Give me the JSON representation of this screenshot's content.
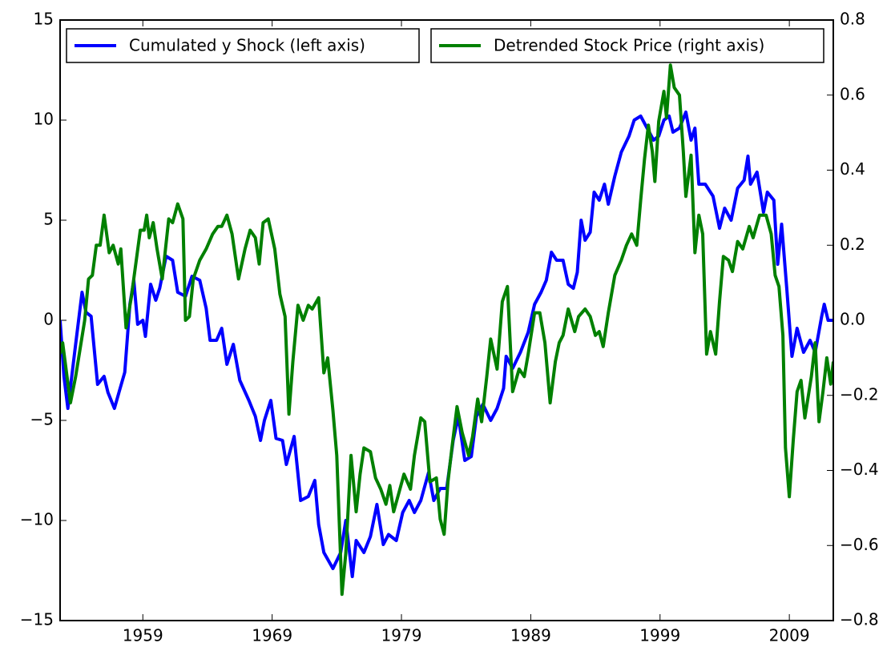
{
  "chart_data": {
    "type": "line",
    "xlim": [
      1952.6,
      2012.4
    ],
    "xticks": [
      1959,
      1969,
      1979,
      1989,
      1999,
      2009
    ],
    "ylim": [
      -15,
      15
    ],
    "yticks": [
      {
        "value": -15,
        "label": "−15"
      },
      {
        "value": -10,
        "label": "−10"
      },
      {
        "value": -5,
        "label": "−5"
      },
      0,
      5,
      10,
      15
    ],
    "y2lim": [
      -0.8,
      0.8
    ],
    "y2ticks": [
      {
        "value": -0.8,
        "label": "−0.8"
      },
      {
        "value": -0.6,
        "label": "−0.6"
      },
      {
        "value": -0.4,
        "label": "−0.4"
      },
      {
        "value": -0.2,
        "label": "−0.2"
      },
      {
        "value": 0,
        "label": "0.0"
      },
      0.2,
      0.4,
      0.6,
      0.8
    ],
    "legend": "upper center",
    "series": [
      {
        "name": "Cumulated y Shock (left axis)",
        "color": "#0000ff",
        "axis": "y",
        "x": [
          1952.6,
          1952.9,
          1953.2,
          1953.8,
          1954.3,
          1954.6,
          1955.0,
          1955.5,
          1956.0,
          1956.3,
          1956.8,
          1957.2,
          1957.6,
          1958.0,
          1958.3,
          1958.6,
          1959.0,
          1959.2,
          1959.6,
          1960.0,
          1960.3,
          1960.8,
          1961.3,
          1961.7,
          1962.3,
          1962.8,
          1963.4,
          1963.9,
          1964.2,
          1964.7,
          1965.1,
          1965.5,
          1966.0,
          1966.5,
          1967.2,
          1967.7,
          1968.1,
          1968.4,
          1968.9,
          1969.3,
          1969.8,
          1970.1,
          1970.7,
          1971.2,
          1971.8,
          1972.3,
          1972.6,
          1973.0,
          1973.7,
          1974.3,
          1974.7,
          1975.2,
          1975.5,
          1976.1,
          1976.6,
          1977.1,
          1977.6,
          1978.0,
          1978.6,
          1979.1,
          1979.6,
          1980.0,
          1980.5,
          1981.1,
          1981.5,
          1982.0,
          1982.5,
          1983.0,
          1983.4,
          1983.9,
          1984.4,
          1984.8,
          1985.3,
          1985.9,
          1986.4,
          1986.9,
          1987.1,
          1987.6,
          1988.2,
          1988.8,
          1989.3,
          1989.8,
          1990.2,
          1990.6,
          1991.0,
          1991.5,
          1991.9,
          1992.3,
          1992.6,
          1992.9,
          1993.2,
          1993.6,
          1993.9,
          1994.3,
          1994.7,
          1995.0,
          1995.5,
          1996.0,
          1996.6,
          1997.0,
          1997.5,
          1998.0,
          1998.5,
          1998.9,
          1999.3,
          1999.7,
          2000.0,
          2000.5,
          2001.0,
          2001.4,
          2001.7,
          2002.0,
          2002.5,
          2003.1,
          2003.6,
          2004.0,
          2004.5,
          2005.0,
          2005.5,
          2005.8,
          2006.0,
          2006.5,
          2007.0,
          2007.3,
          2007.8,
          2008.1,
          2008.4,
          2008.8,
          2009.2,
          2009.6,
          2010.1,
          2010.6,
          2011.0,
          2011.5,
          2011.7,
          2012.0,
          2012.4
        ],
        "values": [
          0,
          -2.8,
          -4.4,
          -1.2,
          1.4,
          0.4,
          0.2,
          -3.2,
          -2.8,
          -3.6,
          -4.4,
          -3.5,
          -2.6,
          0.8,
          2.0,
          -0.2,
          0,
          -0.8,
          1.8,
          1.0,
          1.6,
          3.2,
          3.0,
          1.4,
          1.2,
          2.2,
          2.0,
          0.6,
          -1.0,
          -1.0,
          -0.4,
          -2.2,
          -1.2,
          -3.0,
          -4.0,
          -4.8,
          -6.0,
          -5.0,
          -4.0,
          -5.9,
          -6.0,
          -7.2,
          -5.8,
          -9.0,
          -8.8,
          -8.0,
          -10.2,
          -11.6,
          -12.4,
          -11.6,
          -10.0,
          -12.8,
          -11.0,
          -11.6,
          -10.8,
          -9.2,
          -11.2,
          -10.7,
          -11.0,
          -9.6,
          -9.0,
          -9.6,
          -9.0,
          -7.6,
          -9.0,
          -8.4,
          -8.4,
          -6.0,
          -4.8,
          -7.0,
          -6.8,
          -4.8,
          -4.2,
          -5.0,
          -4.4,
          -3.4,
          -1.8,
          -2.4,
          -1.6,
          -0.6,
          0.8,
          1.4,
          2.0,
          3.4,
          3.0,
          3.0,
          1.8,
          1.6,
          2.4,
          5.0,
          4.0,
          4.4,
          6.4,
          6.0,
          6.8,
          5.8,
          7.2,
          8.4,
          9.2,
          10.0,
          10.2,
          9.6,
          9.0,
          9.2,
          10.0,
          10.2,
          9.4,
          9.6,
          10.4,
          9.0,
          9.6,
          6.8,
          6.8,
          6.2,
          4.6,
          5.6,
          5.0,
          6.6,
          7.0,
          8.2,
          6.8,
          7.4,
          5.4,
          6.4,
          6.0,
          2.8,
          4.8,
          1.6,
          -1.8,
          -0.4,
          -1.6,
          -1.0,
          -1.6,
          0.2,
          0.8,
          0,
          0
        ]
      },
      {
        "name": "Detrended Stock Price (right axis)",
        "color": "#008000",
        "axis": "y2",
        "x": [
          1952.6,
          1952.8,
          1953.4,
          1953.8,
          1954.5,
          1954.8,
          1955.1,
          1955.4,
          1955.7,
          1956.0,
          1956.4,
          1956.7,
          1957.1,
          1957.3,
          1957.7,
          1958.1,
          1958.8,
          1959.1,
          1959.3,
          1959.5,
          1959.8,
          1960.1,
          1960.5,
          1961.0,
          1961.3,
          1961.7,
          1962.1,
          1962.3,
          1962.6,
          1962.9,
          1963.4,
          1963.9,
          1964.4,
          1964.8,
          1965.1,
          1965.5,
          1965.9,
          1966.4,
          1966.9,
          1967.3,
          1967.7,
          1968.0,
          1968.3,
          1968.7,
          1969.2,
          1969.6,
          1970.0,
          1970.3,
          1970.6,
          1971.0,
          1971.4,
          1971.8,
          1972.1,
          1972.6,
          1973.0,
          1973.3,
          1973.7,
          1974.0,
          1974.4,
          1974.7,
          1975.1,
          1975.5,
          1975.8,
          1976.1,
          1976.6,
          1977.0,
          1977.4,
          1977.8,
          1978.1,
          1978.4,
          1978.8,
          1979.2,
          1979.7,
          1980.0,
          1980.5,
          1980.8,
          1981.2,
          1981.7,
          1982.0,
          1982.3,
          1982.6,
          1982.9,
          1983.3,
          1983.7,
          1984.2,
          1984.5,
          1984.9,
          1985.2,
          1985.6,
          1985.9,
          1986.4,
          1986.8,
          1987.2,
          1987.6,
          1988.1,
          1988.5,
          1988.8,
          1989.3,
          1989.7,
          1990.1,
          1990.5,
          1990.9,
          1991.2,
          1991.5,
          1991.9,
          1992.4,
          1992.7,
          1993.2,
          1993.6,
          1994.0,
          1994.3,
          1994.6,
          1995.0,
          1995.5,
          1996.0,
          1996.4,
          1996.8,
          1997.2,
          1997.5,
          1997.8,
          1998.1,
          1998.4,
          1998.6,
          1998.9,
          1999.3,
          1999.5,
          1999.8,
          2000.1,
          2000.5,
          2000.8,
          2001.0,
          2001.4,
          2001.7,
          2002.0,
          2002.3,
          2002.6,
          2002.9,
          2003.3,
          2003.6,
          2003.9,
          2004.3,
          2004.6,
          2005.0,
          2005.4,
          2005.9,
          2006.2,
          2006.7,
          2007.2,
          2007.6,
          2007.9,
          2008.2,
          2008.5,
          2008.7,
          2009.0,
          2009.3,
          2009.6,
          2009.9,
          2010.2,
          2010.7,
          2011.0,
          2011.3,
          2011.6,
          2011.9,
          2012.2,
          2012.4
        ],
        "values": [
          -0.09,
          -0.06,
          -0.22,
          -0.15,
          0.0,
          0.11,
          0.12,
          0.2,
          0.2,
          0.28,
          0.18,
          0.2,
          0.15,
          0.19,
          -0.02,
          0.06,
          0.24,
          0.24,
          0.28,
          0.22,
          0.26,
          0.19,
          0.11,
          0.27,
          0.26,
          0.31,
          0.27,
          0.0,
          0.01,
          0.11,
          0.16,
          0.19,
          0.23,
          0.25,
          0.25,
          0.28,
          0.23,
          0.11,
          0.19,
          0.24,
          0.22,
          0.15,
          0.26,
          0.27,
          0.19,
          0.07,
          0.01,
          -0.25,
          -0.11,
          0.04,
          0.0,
          0.04,
          0.03,
          0.06,
          -0.14,
          -0.1,
          -0.24,
          -0.36,
          -0.73,
          -0.62,
          -0.36,
          -0.51,
          -0.41,
          -0.34,
          -0.35,
          -0.42,
          -0.45,
          -0.49,
          -0.44,
          -0.51,
          -0.46,
          -0.41,
          -0.45,
          -0.36,
          -0.26,
          -0.27,
          -0.43,
          -0.42,
          -0.53,
          -0.57,
          -0.43,
          -0.34,
          -0.23,
          -0.3,
          -0.36,
          -0.31,
          -0.21,
          -0.27,
          -0.15,
          -0.05,
          -0.13,
          0.05,
          0.09,
          -0.19,
          -0.13,
          -0.15,
          -0.09,
          0.02,
          0.02,
          -0.06,
          -0.22,
          -0.11,
          -0.06,
          -0.04,
          0.03,
          -0.03,
          0.01,
          0.03,
          0.01,
          -0.04,
          -0.03,
          -0.07,
          0.02,
          0.12,
          0.16,
          0.2,
          0.23,
          0.2,
          0.32,
          0.43,
          0.52,
          0.45,
          0.37,
          0.53,
          0.61,
          0.54,
          0.68,
          0.62,
          0.6,
          0.45,
          0.33,
          0.44,
          0.18,
          0.28,
          0.23,
          -0.09,
          -0.03,
          -0.09,
          0.05,
          0.17,
          0.16,
          0.13,
          0.21,
          0.19,
          0.25,
          0.22,
          0.28,
          0.28,
          0.23,
          0.12,
          0.09,
          -0.04,
          -0.34,
          -0.47,
          -0.32,
          -0.19,
          -0.16,
          -0.26,
          -0.15,
          -0.06,
          -0.27,
          -0.19,
          -0.1,
          -0.17,
          -0.11
        ]
      }
    ]
  }
}
